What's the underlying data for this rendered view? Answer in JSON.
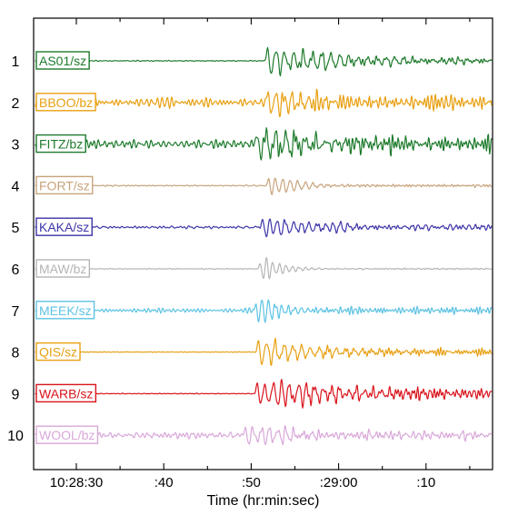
{
  "chart_data": {
    "type": "line",
    "title": "",
    "xlabel": "Time (hr:min:sec)",
    "ylabel": "",
    "x_ticks": [
      {
        "t": 0,
        "label": "10:28:30"
      },
      {
        "t": 10,
        "label": ":40"
      },
      {
        "t": 20,
        "label": ":50"
      },
      {
        "t": 30,
        "label": ":29:00"
      },
      {
        "t": 40,
        "label": ":10"
      }
    ],
    "x_range_seconds": [
      -4.8,
      47.7
    ],
    "series": [
      {
        "row": "1",
        "name": "AS01/sz",
        "color": "#1e7b2c",
        "onset_s": 21.5,
        "pre_noise": 0.05,
        "amp": 1.0,
        "decay": 9,
        "period": 1.05,
        "tail": 0.35
      },
      {
        "row": "2",
        "name": "BBOO/bz",
        "color": "#e8a013",
        "onset_s": 21.6,
        "pre_noise": 0.45,
        "amp": 1.0,
        "decay": 4,
        "period": 0.95,
        "tail": 0.55
      },
      {
        "row": "3",
        "name": "FITZ/bz",
        "color": "#1e7b2c",
        "onset_s": 20.2,
        "pre_noise": 0.35,
        "amp": 0.95,
        "decay": 8,
        "period": 1.15,
        "tail": 0.65
      },
      {
        "row": "4",
        "name": "FORT/sz",
        "color": "#c8a37b",
        "onset_s": 21.7,
        "pre_noise": 0.06,
        "amp": 1.0,
        "decay": 3,
        "period": 0.85,
        "tail": 0.1
      },
      {
        "row": "5",
        "name": "KAKA/sz",
        "color": "#3d35a8",
        "onset_s": 21.0,
        "pre_noise": 0.12,
        "amp": 1.0,
        "decay": 6,
        "period": 0.9,
        "tail": 0.25
      },
      {
        "row": "6",
        "name": "MAW/bz",
        "color": "#b5b5b5",
        "onset_s": 20.8,
        "pre_noise": 0.04,
        "amp": 1.0,
        "decay": 2.5,
        "period": 0.75,
        "tail": 0.06
      },
      {
        "row": "7",
        "name": "MEEK/sz",
        "color": "#5ec3e3",
        "onset_s": 20.3,
        "pre_noise": 0.25,
        "amp": 1.0,
        "decay": 3,
        "period": 0.75,
        "tail": 0.3
      },
      {
        "row": "8",
        "name": "QIS/sz",
        "color": "#e8a013",
        "onset_s": 20.5,
        "pre_noise": 0.04,
        "amp": 1.0,
        "decay": 6,
        "period": 1.0,
        "tail": 0.3
      },
      {
        "row": "9",
        "name": "WARB/sz",
        "color": "#d9141c",
        "onset_s": 20.4,
        "pre_noise": 0.04,
        "amp": 1.0,
        "decay": 10,
        "period": 0.95,
        "tail": 0.5
      },
      {
        "row": "10",
        "name": "WOOL/bz",
        "color": "#d9a8d9",
        "onset_s": 19.0,
        "pre_noise": 0.28,
        "amp": 1.0,
        "decay": 4,
        "period": 0.95,
        "tail": 0.35
      }
    ],
    "grid": false,
    "legend": "inline-left"
  }
}
